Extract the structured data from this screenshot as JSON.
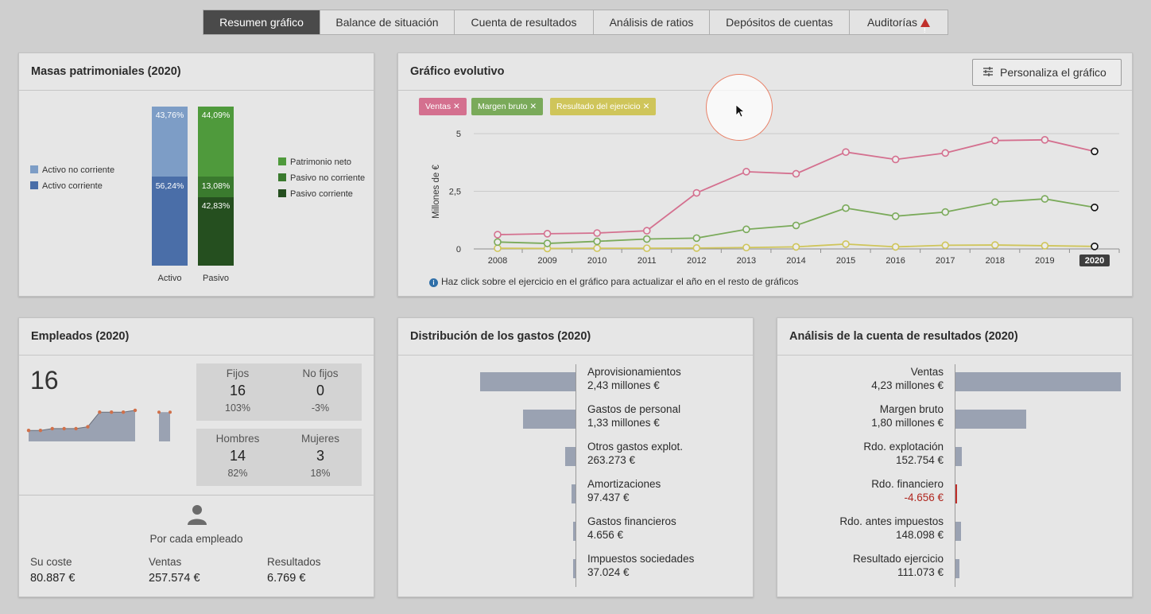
{
  "tabs": [
    {
      "label": "Resumen gráfico",
      "active": true
    },
    {
      "label": "Balance de situación"
    },
    {
      "label": "Cuenta de resultados"
    },
    {
      "label": "Análisis de ratios"
    },
    {
      "label": "Depósitos de cuentas"
    },
    {
      "label": "Auditorías"
    }
  ],
  "masas": {
    "title": "Masas patrimoniales (2020)",
    "legend_left": [
      "Activo no corriente",
      "Activo corriente"
    ],
    "legend_right": [
      "Patrimonio neto",
      "Pasivo no corriente",
      "Pasivo corriente"
    ],
    "activo": {
      "label": "Activo",
      "no_corriente": "43,76%",
      "corriente": "56,24%",
      "no_corriente_value": 43.76,
      "corriente_value": 56.24
    },
    "pasivo": {
      "label": "Pasivo",
      "patrimonio": "44,09%",
      "no_corriente": "13,08%",
      "corriente": "42,83%",
      "patrimonio_value": 44.09,
      "no_corriente_value": 13.08,
      "corriente_value": 42.83
    },
    "colors": {
      "activo_nc": "#7d9dc6",
      "activo_c": "#4a6ea8",
      "patrimonio": "#4f9a3c",
      "pasivo_nc": "#3a7a2e",
      "pasivo_c": "#254f1f"
    }
  },
  "evolutivo": {
    "title": "Gráfico evolutivo",
    "button_label": "Personaliza el gráfico",
    "chips": [
      {
        "label": "Ventas",
        "color": "#d4708f"
      },
      {
        "label": "Margen bruto",
        "color": "#7aaa5a"
      },
      {
        "label": "Resultado del ejercicio",
        "color": "#cfc55a"
      }
    ],
    "ylabel": "Millones de €",
    "info": "Haz click sobre el ejercicio en el gráfico para actualizar el año en el resto de gráficos",
    "selected_year": "2020"
  },
  "chart_data": {
    "type": "line",
    "x": [
      "2008",
      "2009",
      "2010",
      "2011",
      "2012",
      "2013",
      "2014",
      "2015",
      "2016",
      "2017",
      "2018",
      "2019",
      "2020"
    ],
    "ylim": [
      0,
      5
    ],
    "yticks": [
      "0",
      "2,5",
      "5"
    ],
    "ylabel": "Millones de €",
    "series": [
      {
        "name": "Ventas",
        "color": "#d4708f",
        "values": [
          0.62,
          0.66,
          0.69,
          0.79,
          2.43,
          3.35,
          3.26,
          4.2,
          3.88,
          4.16,
          4.7,
          4.73,
          4.23
        ]
      },
      {
        "name": "Margen bruto",
        "color": "#7aaa5a",
        "values": [
          0.3,
          0.24,
          0.33,
          0.43,
          0.47,
          0.85,
          1.02,
          1.77,
          1.42,
          1.6,
          2.03,
          2.17,
          1.8
        ]
      },
      {
        "name": "Resultado del ejercicio",
        "color": "#cfc55a",
        "values": [
          0.03,
          0.02,
          0.03,
          0.03,
          0.04,
          0.06,
          0.09,
          0.21,
          0.09,
          0.16,
          0.17,
          0.14,
          0.11
        ]
      }
    ],
    "grid": true
  },
  "empleados": {
    "title": "Empleados (2020)",
    "total": "16",
    "fijos": {
      "label": "Fijos",
      "value": "16",
      "pct": "103%"
    },
    "no_fijos": {
      "label": "No fijos",
      "value": "0",
      "pct": "-3%"
    },
    "hombres": {
      "label": "Hombres",
      "value": "14",
      "pct": "82%"
    },
    "mujeres": {
      "label": "Mujeres",
      "value": "3",
      "pct": "18%"
    },
    "por_cada": "Por cada empleado",
    "stats": [
      {
        "label": "Su coste",
        "value": "80.887 €"
      },
      {
        "label": "Ventas",
        "value": "257.574 €"
      },
      {
        "label": "Resultados",
        "value": "6.769 €"
      }
    ],
    "trend": [
      6,
      6,
      7,
      7,
      7,
      8,
      16,
      16,
      16,
      17
    ],
    "now": 16
  },
  "gastos": {
    "title": "Distribución de los gastos (2020)",
    "items": [
      {
        "label": "Aprovisionamientos",
        "value": "2,43 millones €",
        "amount": 2430000
      },
      {
        "label": "Gastos de personal",
        "value": "1,33 millones €",
        "amount": 1330000
      },
      {
        "label": "Otros gastos explot.",
        "value": "263.273 €",
        "amount": 263273
      },
      {
        "label": "Amortizaciones",
        "value": "97.437 €",
        "amount": 97437
      },
      {
        "label": "Gastos financieros",
        "value": "4.656 €",
        "amount": 4656
      },
      {
        "label": "Impuestos sociedades",
        "value": "37.024 €",
        "amount": 37024
      }
    ]
  },
  "analisis": {
    "title": "Análisis de la cuenta de resultados (2020)",
    "items": [
      {
        "label": "Ventas",
        "value": "4,23 millones €",
        "amount": 4230000
      },
      {
        "label": "Margen bruto",
        "value": "1,80 millones €",
        "amount": 1800000
      },
      {
        "label": "Rdo. explotación",
        "value": "152.754 €",
        "amount": 152754
      },
      {
        "label": "Rdo. financiero",
        "value": "-4.656 €",
        "amount": -4656,
        "negative": true
      },
      {
        "label": "Rdo. antes impuestos",
        "value": "148.098 €",
        "amount": 148098
      },
      {
        "label": "Resultado ejercicio",
        "value": "111.073 €",
        "amount": 111073
      }
    ]
  }
}
